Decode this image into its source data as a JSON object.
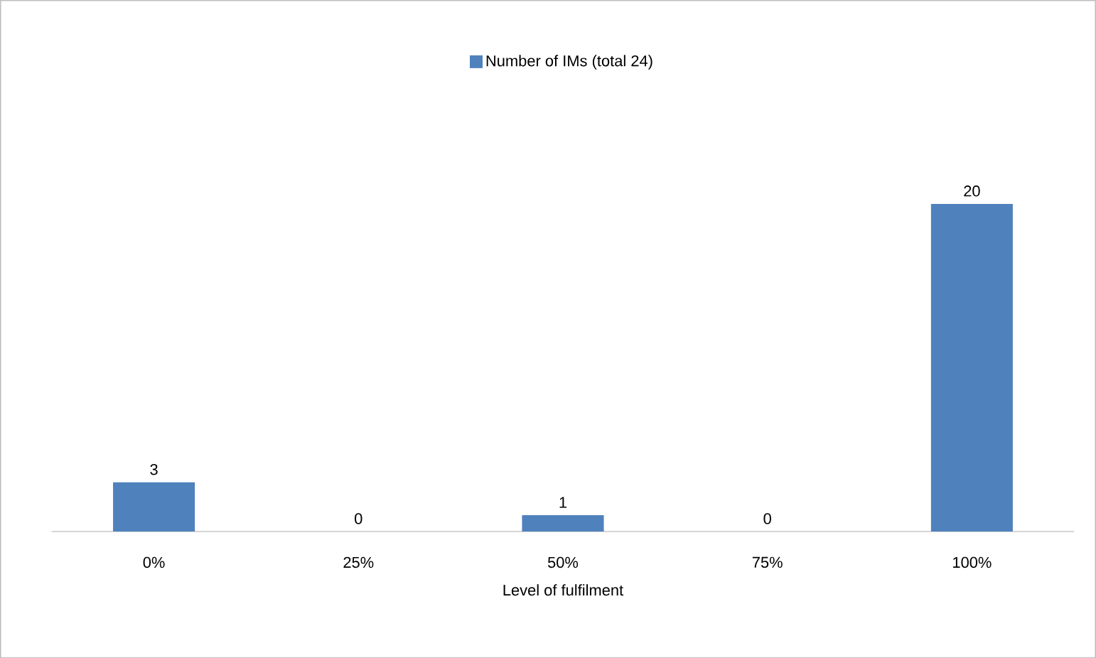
{
  "chart_data": {
    "type": "bar",
    "categories": [
      "0%",
      "25%",
      "50%",
      "75%",
      "100%"
    ],
    "series": [
      {
        "name": "Number of IMs (total 24)",
        "color": "#4f81bd",
        "values": [
          3,
          0,
          1,
          0,
          20
        ]
      }
    ],
    "xlabel": "Level of fulfilment",
    "data_labels": true,
    "legend": "top"
  }
}
